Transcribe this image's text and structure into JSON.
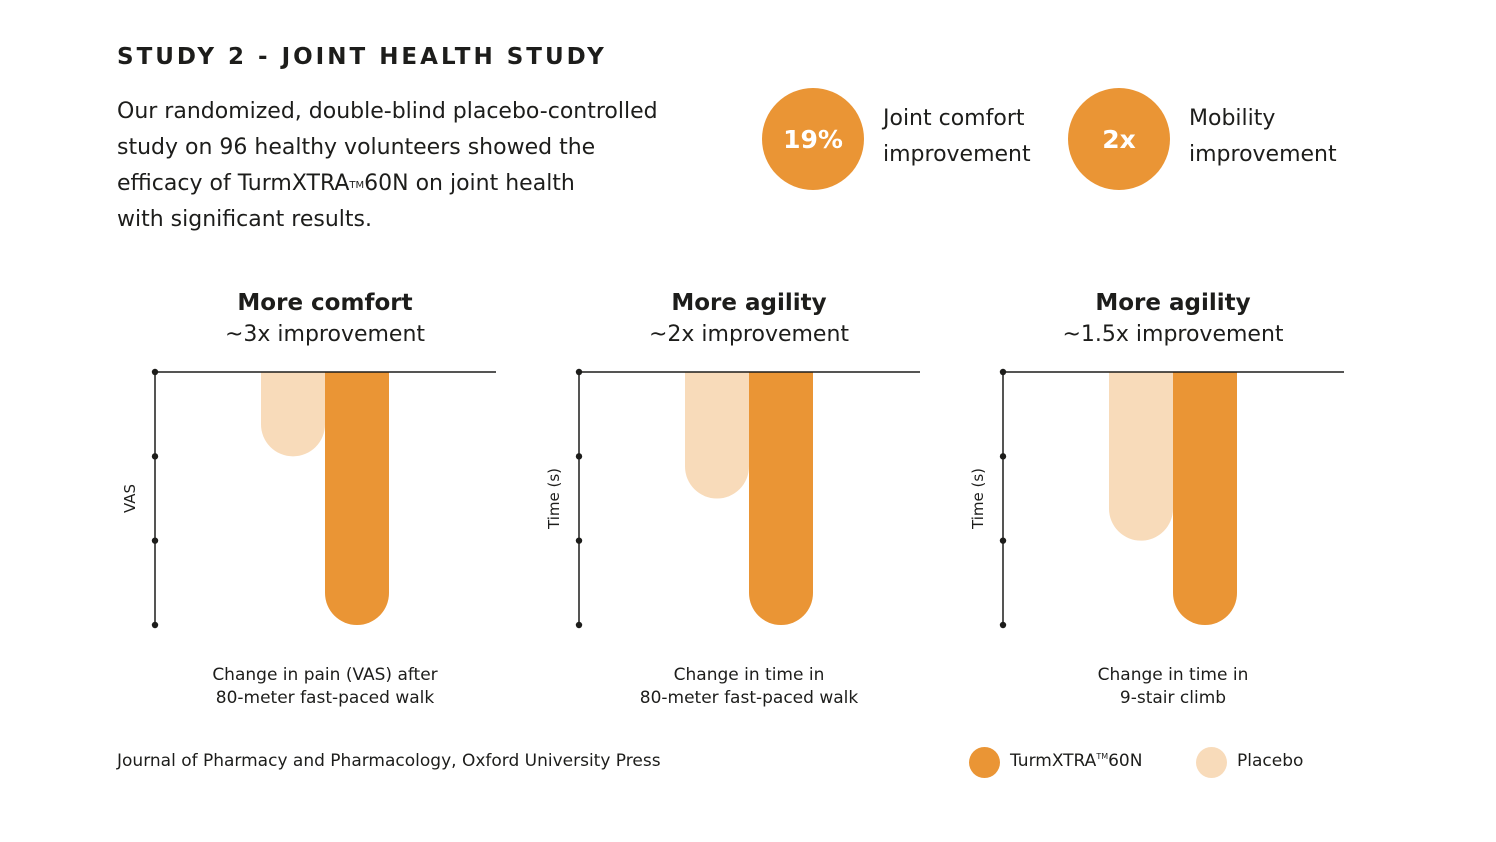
{
  "title": "STUDY 2 - JOINT HEALTH STUDY",
  "intro": {
    "line1": "Our randomized, double-blind placebo-controlled",
    "line2": "study on 96 healthy volunteers showed the",
    "line3_pre": "efficacy of TurmXTRA",
    "line3_tm": "TM",
    "line3_post": "60N on joint health",
    "line4": "with significant results."
  },
  "stats": [
    {
      "value": "19%",
      "label_line1": "Joint comfort",
      "label_line2": "improvement"
    },
    {
      "value": "2x",
      "label_line1": "Mobility",
      "label_line2": "improvement"
    }
  ],
  "colors": {
    "turmxtra": "#EA9535",
    "placebo": "#F8DBBA",
    "axis": "#1d1d1b"
  },
  "chart_data": [
    {
      "type": "bar",
      "title": "More comfort",
      "subtitle": "~3x improvement",
      "ylabel": "VAS",
      "categories": [
        "Placebo",
        "TurmXTRA™60N"
      ],
      "values": [
        -1,
        -3
      ],
      "ylim": [
        -3,
        0
      ],
      "caption_line1": "Change in pain (VAS) after",
      "caption_line2": "80-meter fast-paced walk"
    },
    {
      "type": "bar",
      "title": "More agility",
      "subtitle": "~2x improvement",
      "ylabel": "Time (s)",
      "categories": [
        "Placebo",
        "TurmXTRA™60N"
      ],
      "values": [
        -1.5,
        -3
      ],
      "ylim": [
        -3,
        0
      ],
      "caption_line1": "Change in time in",
      "caption_line2": "80-meter fast-paced walk"
    },
    {
      "type": "bar",
      "title": "More agility",
      "subtitle": "~1.5x improvement",
      "ylabel": "Time (s)",
      "categories": [
        "Placebo",
        "TurmXTRA™60N"
      ],
      "values": [
        -2,
        -3
      ],
      "ylim": [
        -3,
        0
      ],
      "caption_line1": "Change in time in",
      "caption_line2": "9-stair climb"
    }
  ],
  "source": "Journal of Pharmacy and Pharmacology, Oxford University Press",
  "legend": {
    "turmxtra_pre": "TurmXTRA",
    "turmxtra_tm": "TM",
    "turmxtra_post": "60N",
    "placebo": "Placebo"
  }
}
